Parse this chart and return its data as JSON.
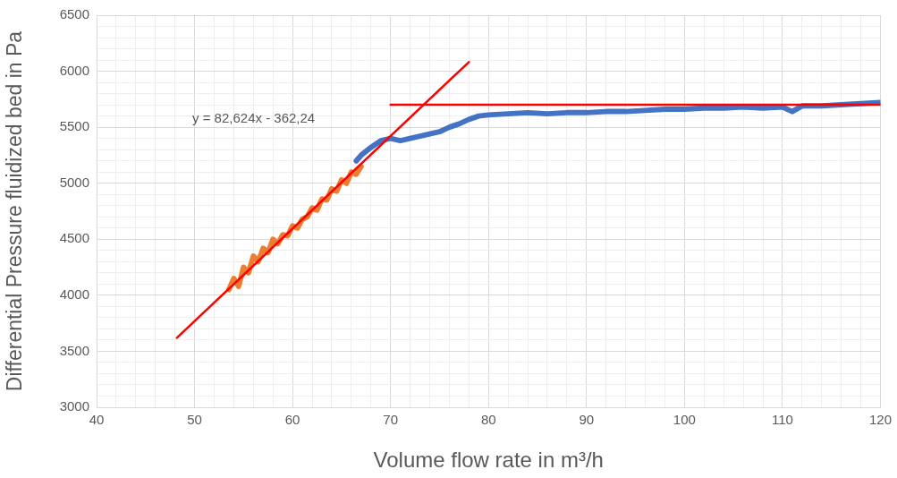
{
  "chart_data": {
    "type": "line",
    "xlabel": "Volume flow rate in m³/h",
    "ylabel": "Differential Pressure fluidized bed in Pa",
    "xlim": [
      40,
      120
    ],
    "ylim": [
      3000,
      6500
    ],
    "xticks": [
      40,
      {
        "value": 42,
        "label": null
      },
      {
        "value": 44,
        "label": null
      },
      {
        "value": 46,
        "label": null
      },
      {
        "value": 48,
        "label": null
      },
      50,
      {
        "value": 52,
        "label": null
      },
      {
        "value": 54,
        "label": null
      },
      {
        "value": 56,
        "label": null
      },
      {
        "value": 58,
        "label": null
      },
      60,
      {
        "value": 62,
        "label": null
      },
      {
        "value": 64,
        "label": null
      },
      {
        "value": 66,
        "label": null
      },
      {
        "value": 68,
        "label": null
      },
      70,
      {
        "value": 72,
        "label": null
      },
      {
        "value": 74,
        "label": null
      },
      {
        "value": 76,
        "label": null
      },
      {
        "value": 78,
        "label": null
      },
      80,
      {
        "value": 82,
        "label": null
      },
      {
        "value": 84,
        "label": null
      },
      {
        "value": 86,
        "label": null
      },
      {
        "value": 88,
        "label": null
      },
      90,
      {
        "value": 92,
        "label": null
      },
      {
        "value": 94,
        "label": null
      },
      {
        "value": 96,
        "label": null
      },
      {
        "value": 98,
        "label": null
      },
      100,
      {
        "value": 102,
        "label": null
      },
      {
        "value": 104,
        "label": null
      },
      {
        "value": 106,
        "label": null
      },
      {
        "value": 108,
        "label": null
      },
      110,
      {
        "value": 112,
        "label": null
      },
      {
        "value": 114,
        "label": null
      },
      {
        "value": 116,
        "label": null
      },
      {
        "value": 118,
        "label": null
      },
      120
    ],
    "yticks": [
      3000,
      {
        "value": 3100,
        "label": null
      },
      {
        "value": 3200,
        "label": null
      },
      {
        "value": 3300,
        "label": null
      },
      {
        "value": 3400,
        "label": null
      },
      3500,
      {
        "value": 3600,
        "label": null
      },
      {
        "value": 3700,
        "label": null
      },
      {
        "value": 3800,
        "label": null
      },
      {
        "value": 3900,
        "label": null
      },
      4000,
      {
        "value": 4100,
        "label": null
      },
      {
        "value": 4200,
        "label": null
      },
      {
        "value": 4300,
        "label": null
      },
      {
        "value": 4400,
        "label": null
      },
      4500,
      {
        "value": 4600,
        "label": null
      },
      {
        "value": 4700,
        "label": null
      },
      {
        "value": 4800,
        "label": null
      },
      {
        "value": 4900,
        "label": null
      },
      5000,
      {
        "value": 5100,
        "label": null
      },
      {
        "value": 5200,
        "label": null
      },
      {
        "value": 5300,
        "label": null
      },
      {
        "value": 5400,
        "label": null
      },
      5500,
      {
        "value": 5600,
        "label": null
      },
      {
        "value": 5700,
        "label": null
      },
      {
        "value": 5800,
        "label": null
      },
      {
        "value": 5900,
        "label": null
      },
      6000,
      {
        "value": 6100,
        "label": null
      },
      {
        "value": 6200,
        "label": null
      },
      {
        "value": 6300,
        "label": null
      },
      {
        "value": 6400,
        "label": null
      },
      6500
    ],
    "grid": true,
    "legend": false,
    "marker": "none",
    "line_style": "solid",
    "series": [
      {
        "color": "#4472c4",
        "x": [
          66.5,
          67,
          68,
          69,
          70,
          71,
          72,
          73,
          74,
          75,
          76,
          77,
          78,
          79,
          80,
          82,
          84,
          86,
          88,
          90,
          92,
          94,
          96,
          98,
          100,
          102,
          104,
          106,
          108,
          110,
          111,
          112,
          114,
          116,
          118,
          120
        ],
        "values": [
          5200,
          5250,
          5320,
          5380,
          5400,
          5380,
          5400,
          5420,
          5440,
          5460,
          5500,
          5530,
          5570,
          5600,
          5610,
          5620,
          5630,
          5620,
          5630,
          5630,
          5640,
          5640,
          5650,
          5660,
          5660,
          5670,
          5670,
          5680,
          5670,
          5680,
          5640,
          5690,
          5690,
          5700,
          5710,
          5720
        ]
      },
      {
        "color": "#ed7d31",
        "x": [
          53.5,
          54,
          54.5,
          55,
          55.5,
          56,
          56.5,
          57,
          57.5,
          58,
          58.5,
          59,
          59.5,
          60,
          60.5,
          61,
          61.5,
          62,
          62.5,
          63,
          63.5,
          64,
          64.5,
          65,
          65.5,
          66,
          66.5,
          67
        ],
        "values": [
          4050,
          4150,
          4080,
          4250,
          4200,
          4350,
          4300,
          4420,
          4380,
          4500,
          4460,
          4540,
          4530,
          4620,
          4600,
          4680,
          4700,
          4780,
          4760,
          4860,
          4850,
          4950,
          4930,
          5030,
          5000,
          5100,
          5080,
          5150
        ]
      },
      {
        "color": "#ff0000",
        "x": [
          48.2,
          78
        ],
        "values": [
          3620,
          6082
        ]
      },
      {
        "color": "#ff0000",
        "x": [
          70,
          120
        ],
        "values": [
          5700,
          5700
        ]
      }
    ],
    "annotations": [
      "y = 82,624x - 362,24"
    ]
  }
}
